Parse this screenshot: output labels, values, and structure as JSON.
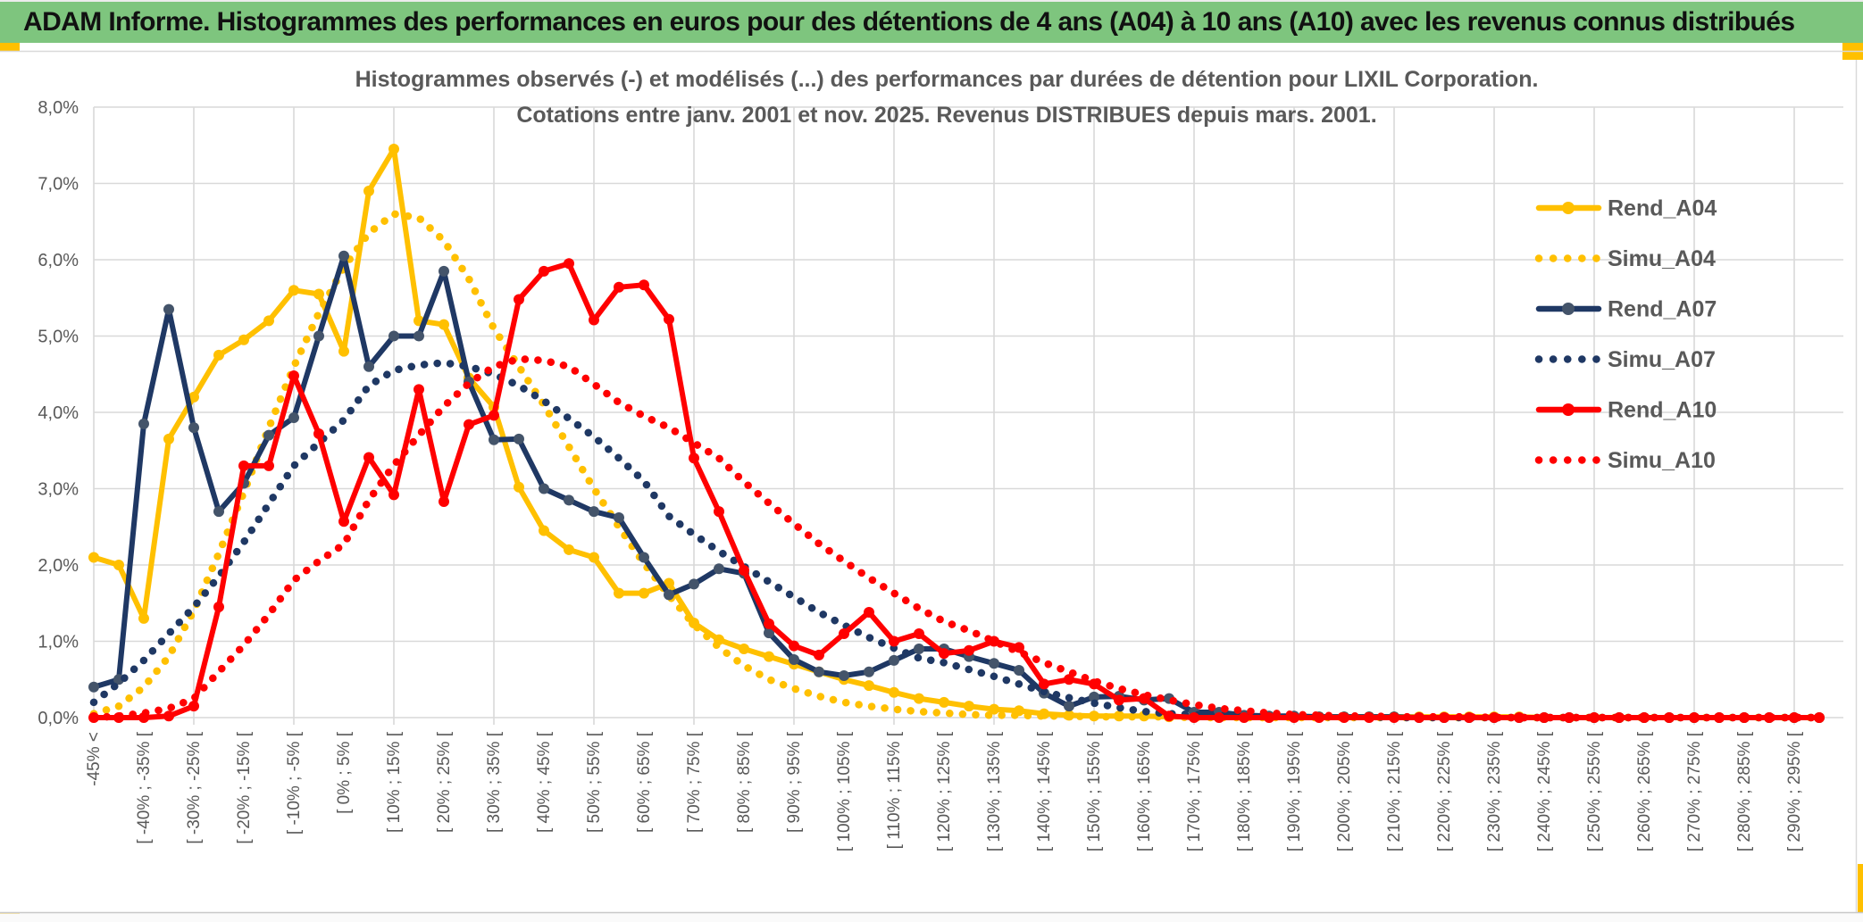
{
  "window": {
    "title": "ADAM Informe. Histogrammes des performances en euros pour des détentions de 4 ans (A04) à 10 ans (A10) avec les revenus connus distribués"
  },
  "colors": {
    "title_bar_green": "#7ec57e",
    "accent_yellow": "#ffc000",
    "gold": "#ffc000",
    "navy": "#1f3864",
    "navy_marker": "#44546a",
    "red": "#ff0000",
    "grid": "#d9d9d9",
    "axis_text": "#595959",
    "title_text": "#595959"
  },
  "chart": {
    "title_line1": "Histogrammes observés (-) et modélisés (...) des performances par durées de détention pour LIXIL Corporation.",
    "title_line2": "Cotations entre janv. 2001 et nov. 2025. Revenus DISTRIBUES depuis mars. 2001.",
    "y_axis": {
      "labels": [
        "8,0%",
        "7,0%",
        "6,0%",
        "5,0%",
        "4,0%",
        "3,0%",
        "2,0%",
        "1,0%",
        "0,0%"
      ]
    },
    "legend": [
      {
        "label": "Rend_A04",
        "color": "#ffc000",
        "style": "solid",
        "marker": "#ffc000"
      },
      {
        "label": "Simu_A04",
        "color": "#ffc000",
        "style": "dotted",
        "marker": "none"
      },
      {
        "label": "Rend_A07",
        "color": "#1f3864",
        "style": "solid",
        "marker": "#44546a"
      },
      {
        "label": "Simu_A07",
        "color": "#1f3864",
        "style": "dotted",
        "marker": "none"
      },
      {
        "label": "Rend_A10",
        "color": "#ff0000",
        "style": "solid",
        "marker": "#ff0000"
      },
      {
        "label": "Simu_A10",
        "color": "#ff0000",
        "style": "dotted",
        "marker": "none"
      }
    ]
  },
  "chart_data": {
    "type": "line",
    "ylim": [
      0,
      8
    ],
    "y_tick_step_pct": 1.0,
    "bin_width_pct": 5,
    "x_label_every_bins": 2,
    "grid": true,
    "legend_position": "right-inside",
    "categories": [
      "-45% <",
      "[ -40% ; -35% [",
      "[ -30% ; -25% [",
      "[ -20% ; -15% [",
      "[ -10% ; -5% [",
      "[ 0% ; 5% [",
      "[ 10% ; 15% [",
      "[ 20% ; 25% [",
      "[ 30% ; 35% [",
      "[ 40% ; 45% [",
      "[ 50% ; 55% [",
      "[ 60% ; 65% [",
      "[ 70% ; 75% [",
      "[ 80% ; 85% [",
      "[ 90% ; 95% [",
      "[ 100% ; 105% [",
      "[ 110% ; 115% [",
      "[ 120% ; 125% [",
      "[ 130% ; 135% [",
      "[ 140% ; 145% [",
      "[ 150% ; 155% [",
      "[ 160% ; 165% [",
      "[ 170% ; 175% [",
      "[ 180% ; 185% [",
      "[ 190% ; 195% [",
      "[ 200% ; 205% [",
      "[ 210% ; 215% [",
      "[ 220% ; 225% [",
      "[ 230% ; 235% [",
      "[ 240% ; 245% [",
      "[ 250% ; 255% [",
      "[ 260% ; 265% [",
      "[ 270% ; 275% [",
      "[ 280% ; 285% [",
      "[ 290% ; 295% ["
    ],
    "series": [
      {
        "name": "Rend_A04",
        "style": "solid",
        "color": "#ffc000",
        "marker_color": "#ffc000",
        "values": [
          2.1,
          2.0,
          1.3,
          3.65,
          4.2,
          4.75,
          4.95,
          5.2,
          5.6,
          5.55,
          4.8,
          6.9,
          7.45,
          5.2,
          5.15,
          4.45,
          4.07,
          3.02,
          2.45,
          2.2,
          2.1,
          1.63,
          1.63,
          1.76,
          1.24,
          1.02,
          0.9,
          0.8,
          0.7,
          0.6,
          0.5,
          0.42,
          0.33,
          0.25,
          0.2,
          0.15,
          0.11,
          0.09,
          0.05,
          0.03,
          0.02,
          0.02,
          0.02,
          0.01,
          0.01,
          0.01,
          0.01,
          0.01,
          0.01,
          0.01,
          0.01,
          0.01,
          0.01,
          0.01,
          0.01,
          0.01,
          0.01,
          0.01,
          0,
          0,
          0,
          0,
          0,
          0,
          0,
          0,
          0,
          0,
          0,
          0
        ]
      },
      {
        "name": "Simu_A04",
        "style": "dotted",
        "color": "#ffc000",
        "marker_color": "none",
        "values": [
          0.05,
          0.15,
          0.4,
          0.8,
          1.4,
          2.15,
          2.95,
          3.8,
          4.6,
          5.3,
          5.9,
          6.35,
          6.6,
          6.55,
          6.25,
          5.75,
          5.1,
          4.6,
          4.1,
          3.55,
          3.0,
          2.5,
          2.02,
          1.6,
          1.22,
          0.92,
          0.68,
          0.5,
          0.38,
          0.28,
          0.2,
          0.15,
          0.11,
          0.08,
          0.06,
          0.04,
          0.03,
          0.03,
          0.02,
          0.02,
          0.01,
          0.01,
          0.01,
          0.01,
          0,
          0,
          0,
          0,
          0,
          0,
          0,
          0,
          0,
          0,
          0,
          0,
          0,
          0,
          0,
          0,
          0,
          0,
          0,
          0,
          0,
          0,
          0,
          0,
          0,
          0
        ]
      },
      {
        "name": "Rend_A07",
        "style": "solid",
        "color": "#1f3864",
        "marker_color": "#44546a",
        "values": [
          0.4,
          0.5,
          3.85,
          5.35,
          3.8,
          2.7,
          3.07,
          3.7,
          3.93,
          5.0,
          6.05,
          4.6,
          5.0,
          5.0,
          5.85,
          4.4,
          3.64,
          3.65,
          3.0,
          2.85,
          2.7,
          2.62,
          2.1,
          1.61,
          1.75,
          1.95,
          1.89,
          1.11,
          0.76,
          0.6,
          0.55,
          0.6,
          0.75,
          0.9,
          0.9,
          0.8,
          0.71,
          0.62,
          0.32,
          0.15,
          0.27,
          0.28,
          0.23,
          0.25,
          0.07,
          0.07,
          0.03,
          0.02,
          0.02,
          0.01,
          0.01,
          0.01,
          0.01,
          0,
          0,
          0,
          0,
          0,
          0,
          0,
          0,
          0,
          0,
          0,
          0,
          0,
          0,
          0,
          0,
          0
        ]
      },
      {
        "name": "Simu_A07",
        "style": "dotted",
        "color": "#1f3864",
        "marker_color": "none",
        "values": [
          0.2,
          0.45,
          0.75,
          1.1,
          1.45,
          1.85,
          2.3,
          2.8,
          3.3,
          3.6,
          3.9,
          4.35,
          4.55,
          4.62,
          4.65,
          4.6,
          4.5,
          4.35,
          4.15,
          3.92,
          3.68,
          3.4,
          3.1,
          2.64,
          2.4,
          2.18,
          1.98,
          1.78,
          1.58,
          1.38,
          1.21,
          1.05,
          0.91,
          0.78,
          0.72,
          0.63,
          0.54,
          0.44,
          0.34,
          0.26,
          0.19,
          0.13,
          0.08,
          0.05,
          0.04,
          0.03,
          0.03,
          0.02,
          0.02,
          0.01,
          0.01,
          0.01,
          0,
          0,
          0,
          0,
          0,
          0,
          0,
          0,
          0,
          0,
          0,
          0,
          0,
          0,
          0,
          0,
          0,
          0
        ]
      },
      {
        "name": "Rend_A10",
        "style": "solid",
        "color": "#ff0000",
        "marker_color": "#ff0000",
        "values": [
          0,
          0,
          0,
          0.02,
          0.15,
          1.45,
          3.3,
          3.3,
          4.48,
          3.72,
          2.57,
          3.41,
          2.92,
          4.3,
          2.83,
          3.84,
          3.96,
          5.48,
          5.85,
          5.95,
          5.21,
          5.64,
          5.67,
          5.22,
          3.4,
          2.7,
          1.93,
          1.23,
          0.94,
          0.82,
          1.1,
          1.38,
          1.0,
          1.1,
          0.84,
          0.88,
          1.0,
          0.92,
          0.44,
          0.5,
          0.44,
          0.23,
          0.25,
          0.02,
          0,
          0,
          0,
          0,
          0,
          0,
          0,
          0,
          0,
          0,
          0,
          0,
          0,
          0,
          0,
          0,
          0,
          0,
          0,
          0,
          0,
          0,
          0,
          0,
          0,
          0
        ]
      },
      {
        "name": "Simu_A10",
        "style": "dotted",
        "color": "#ff0000",
        "marker_color": "none",
        "values": [
          0,
          0.02,
          0.06,
          0.12,
          0.25,
          0.6,
          0.95,
          1.35,
          1.8,
          2.05,
          2.27,
          2.85,
          3.31,
          3.7,
          4.08,
          4.38,
          4.6,
          4.7,
          4.68,
          4.6,
          4.37,
          4.13,
          3.95,
          3.8,
          3.6,
          3.4,
          3.09,
          2.81,
          2.54,
          2.28,
          2.05,
          1.83,
          1.63,
          1.43,
          1.26,
          1.14,
          1.0,
          0.86,
          0.72,
          0.6,
          0.48,
          0.38,
          0.3,
          0.23,
          0.17,
          0.12,
          0.09,
          0.06,
          0.04,
          0.03,
          0.02,
          0.02,
          0.01,
          0.01,
          0.01,
          0.01,
          0,
          0,
          0,
          0,
          0,
          0,
          0,
          0,
          0,
          0,
          0,
          0,
          0,
          0
        ]
      }
    ]
  }
}
